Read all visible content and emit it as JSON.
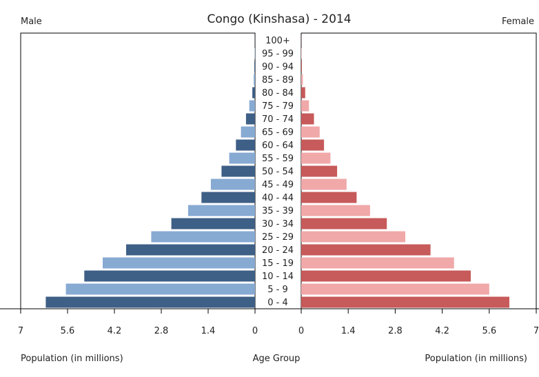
{
  "chart_data": {
    "type": "bar",
    "subtype": "population-pyramid",
    "title": "Congo (Kinshasa) - 2014",
    "left_label": "Male",
    "right_label": "Female",
    "xlabel_left": "Population (in millions)",
    "xlabel_center": "Age Group",
    "xlabel_right": "Population (in millions)",
    "xlim": [
      0,
      7
    ],
    "ticks": [
      "7",
      "5.6",
      "4.2",
      "2.8",
      "1.4",
      "0"
    ],
    "ticks_right": [
      "0",
      "1.4",
      "2.8",
      "4.2",
      "5.6",
      "7"
    ],
    "categories": [
      "0 - 4",
      "5 - 9",
      "10 - 14",
      "15 - 19",
      "20 - 24",
      "25 - 29",
      "30 - 34",
      "35 - 39",
      "40 - 44",
      "45 - 49",
      "50 - 54",
      "55 - 59",
      "60 - 64",
      "65 - 69",
      "70 - 74",
      "75 - 79",
      "80 - 84",
      "85 - 89",
      "90 - 94",
      "95 - 99",
      "100+"
    ],
    "series": [
      {
        "name": "Male",
        "values": [
          6.25,
          5.65,
          5.1,
          4.55,
          3.85,
          3.1,
          2.5,
          2.0,
          1.6,
          1.32,
          1.0,
          0.77,
          0.57,
          0.42,
          0.27,
          0.17,
          0.08,
          0.04,
          0.02,
          0.01,
          0.005
        ]
      },
      {
        "name": "Female",
        "values": [
          6.2,
          5.6,
          5.05,
          4.55,
          3.85,
          3.1,
          2.55,
          2.05,
          1.65,
          1.35,
          1.07,
          0.87,
          0.68,
          0.55,
          0.38,
          0.23,
          0.12,
          0.05,
          0.02,
          0.01,
          0.005
        ]
      }
    ],
    "colors": {
      "male_dark": "#3e5f86",
      "male_light": "#87aad3",
      "female_dark": "#c75a5a",
      "female_light": "#f0a8a8"
    },
    "grid": false,
    "legend": "none"
  }
}
